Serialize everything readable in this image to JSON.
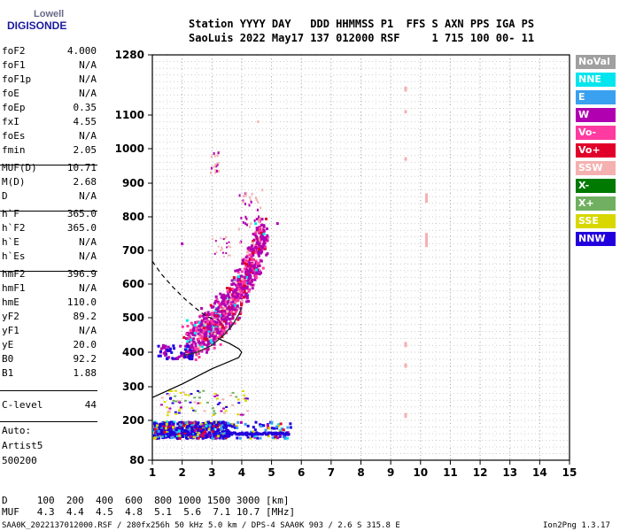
{
  "logo": {
    "line1": "Lowell",
    "line2": "DIGISONDE"
  },
  "header": {
    "line1": "Station YYYY DAY   DDD HHMMSS P1  FFS S AXN PPS IGA PS",
    "line2": "SaoLuis 2022 May17 137 012000 RSF     1 715 100 00- 11"
  },
  "params": [
    {
      "k": "foF2",
      "v": "4.000"
    },
    {
      "k": "foF1",
      "v": "N/A"
    },
    {
      "k": "foF1p",
      "v": "N/A"
    },
    {
      "k": "foE",
      "v": "N/A"
    },
    {
      "k": "foEp",
      "v": "0.35"
    },
    {
      "k": "fxI",
      "v": "4.55"
    },
    {
      "k": "foEs",
      "v": "N/A"
    },
    {
      "k": "fmin",
      "v": "2.05"
    },
    {
      "k": "MUF(D)",
      "v": "10.71"
    },
    {
      "k": "M(D)",
      "v": "2.68"
    },
    {
      "k": "D",
      "v": "N/A"
    },
    {
      "k": "h`F",
      "v": "365.0"
    },
    {
      "k": "h`F2",
      "v": "365.0"
    },
    {
      "k": "h`E",
      "v": "N/A"
    },
    {
      "k": "h`Es",
      "v": "N/A"
    },
    {
      "k": "hmF2",
      "v": "396.9"
    },
    {
      "k": "hmF1",
      "v": "N/A"
    },
    {
      "k": "hmE",
      "v": "110.0"
    },
    {
      "k": "yF2",
      "v": "89.2"
    },
    {
      "k": "yF1",
      "v": "N/A"
    },
    {
      "k": "yE",
      "v": "20.0"
    },
    {
      "k": "B0",
      "v": "92.2"
    },
    {
      "k": "B1",
      "v": "1.88"
    },
    {
      "k": "C-level",
      "v": "44"
    }
  ],
  "auto": {
    "l1": "Auto:",
    "l2": "Artist5",
    "l3": "500200"
  },
  "legend": [
    {
      "label": "NoVal",
      "color": "#a0a0a0"
    },
    {
      "label": "NNE",
      "color": "#00e5ee"
    },
    {
      "label": "E",
      "color": "#3aa0f0"
    },
    {
      "label": "W",
      "color": "#b000b0"
    },
    {
      "label": "Vo-",
      "color": "#ff3aa0"
    },
    {
      "label": "Vo+",
      "color": "#e0002a"
    },
    {
      "label": "SSW",
      "color": "#f5b0b0"
    },
    {
      "label": "X-",
      "color": "#007a00"
    },
    {
      "label": "X+",
      "color": "#70b060"
    },
    {
      "label": "SSE",
      "color": "#d8d800"
    },
    {
      "label": "NNW",
      "color": "#2200dd"
    }
  ],
  "footer": {
    "line1": "D     100  200  400  600  800 1000 1500 3000 [km]",
    "line2": "MUF   4.3  4.4  4.5  4.8  5.1  5.6  7.1 10.7 [MHz]",
    "line3": "SAA0K_2022137012000.RSF / 280fx256h 50 kHz 5.0 km / DPS-4 SAA0K 903 / 2.6 S 315.8 E",
    "version": "Ion2Png 1.3.17"
  },
  "chart_data": {
    "type": "scatter",
    "xlim": [
      1,
      15
    ],
    "ylim": [
      80,
      1280
    ],
    "x_ticks": [
      1,
      2,
      3,
      4,
      5,
      6,
      7,
      8,
      9,
      10,
      11,
      12,
      13,
      14,
      15
    ],
    "y_ticks": [
      80,
      200,
      300,
      400,
      500,
      600,
      700,
      800,
      900,
      1000,
      1100,
      1280
    ],
    "grid": true,
    "curves": {
      "profile_solid": [
        [
          1.0,
          268
        ],
        [
          1.5,
          288
        ],
        [
          2.0,
          308
        ],
        [
          2.5,
          330
        ],
        [
          3.0,
          352
        ],
        [
          3.5,
          370
        ],
        [
          3.9,
          385
        ],
        [
          4.0,
          400
        ],
        [
          3.9,
          410
        ],
        [
          3.6,
          425
        ],
        [
          3.2,
          440
        ]
      ],
      "extrapolation_dashed": [
        [
          1.0,
          668
        ],
        [
          1.3,
          630
        ],
        [
          1.7,
          590
        ],
        [
          2.1,
          555
        ],
        [
          2.5,
          525
        ],
        [
          2.8,
          505
        ],
        [
          3.0,
          498
        ]
      ],
      "virtual_height_trace": [
        [
          2.05,
          390
        ],
        [
          2.5,
          400
        ],
        [
          3.0,
          420
        ],
        [
          3.4,
          450
        ],
        [
          3.7,
          480
        ],
        [
          3.9,
          510
        ],
        [
          4.0,
          530
        ]
      ]
    },
    "clusters": [
      {
        "dir": "W",
        "x0": 2.2,
        "x1": 4.7,
        "note": "F2 trace",
        "pts": [
          [
            2.2,
            405
          ],
          [
            2.5,
            420
          ],
          [
            2.8,
            440
          ],
          [
            3.0,
            455
          ],
          [
            3.2,
            470
          ],
          [
            3.4,
            490
          ],
          [
            3.6,
            510
          ],
          [
            3.8,
            540
          ],
          [
            4.0,
            570
          ],
          [
            4.2,
            610
          ],
          [
            4.4,
            650
          ],
          [
            4.6,
            700
          ],
          [
            4.7,
            730
          ]
        ]
      },
      {
        "dir": "NNW",
        "x0": 1.1,
        "x1": 5.6,
        "note": "Es band",
        "pts": [
          [
            1.1,
            165
          ],
          [
            1.5,
            162
          ],
          [
            2.0,
            160
          ],
          [
            2.5,
            160
          ],
          [
            3.0,
            158
          ],
          [
            3.5,
            158
          ],
          [
            4.0,
            156
          ],
          [
            4.5,
            156
          ],
          [
            5.0,
            155
          ],
          [
            5.6,
            155
          ]
        ]
      },
      {
        "dir": "SSW",
        "x0": 9.5,
        "x1": 10.2,
        "note": "interference lines",
        "pts": [
          [
            9.5,
            1180
          ],
          [
            9.5,
            1110
          ],
          [
            9.5,
            970
          ],
          [
            9.5,
            420
          ],
          [
            9.5,
            360
          ],
          [
            9.5,
            215
          ],
          [
            10.2,
            860
          ],
          [
            10.2,
            740
          ],
          [
            10.2,
            720
          ]
        ]
      }
    ]
  }
}
